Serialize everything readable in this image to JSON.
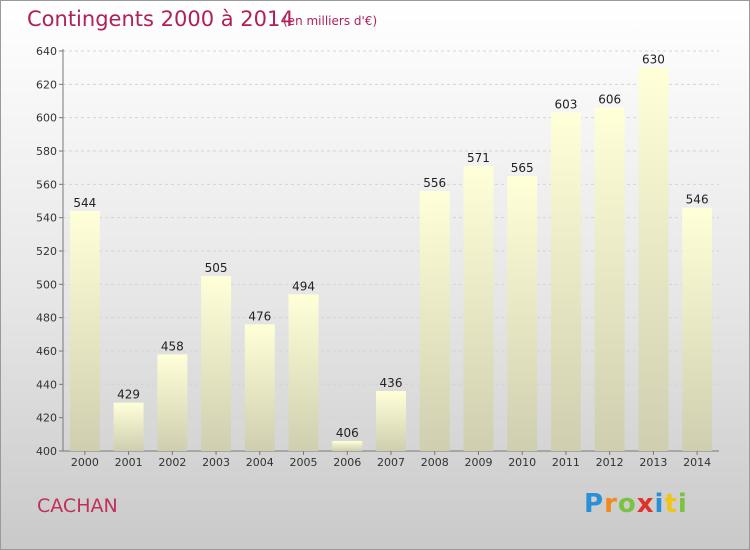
{
  "header": {
    "title": "Contingents 2000 à 2014",
    "subtitle": "(en milliers d'€)"
  },
  "footer": {
    "commune": "CACHAN",
    "logo_letters": [
      "P",
      "r",
      "o",
      "x",
      "i",
      "t",
      "i"
    ],
    "logo_colors": [
      "#2a8fd6",
      "#f08a1c",
      "#7cc242",
      "#e0322b",
      "#2a8fd6",
      "#f0c419",
      "#7cc242"
    ]
  },
  "chart_data": {
    "type": "bar",
    "categories": [
      "2000",
      "2001",
      "2002",
      "2003",
      "2004",
      "2005",
      "2006",
      "2007",
      "2008",
      "2009",
      "2010",
      "2011",
      "2012",
      "2013",
      "2014"
    ],
    "values": [
      544,
      429,
      458,
      505,
      476,
      494,
      406,
      436,
      556,
      571,
      565,
      603,
      606,
      630,
      546
    ],
    "ylim": [
      400,
      640
    ],
    "yticks": [
      400,
      420,
      440,
      460,
      480,
      500,
      520,
      540,
      560,
      580,
      600,
      620,
      640
    ],
    "grid": true,
    "bar_color_top": "#ffffd8",
    "bar_color_bottom": "#cfcfb0"
  }
}
